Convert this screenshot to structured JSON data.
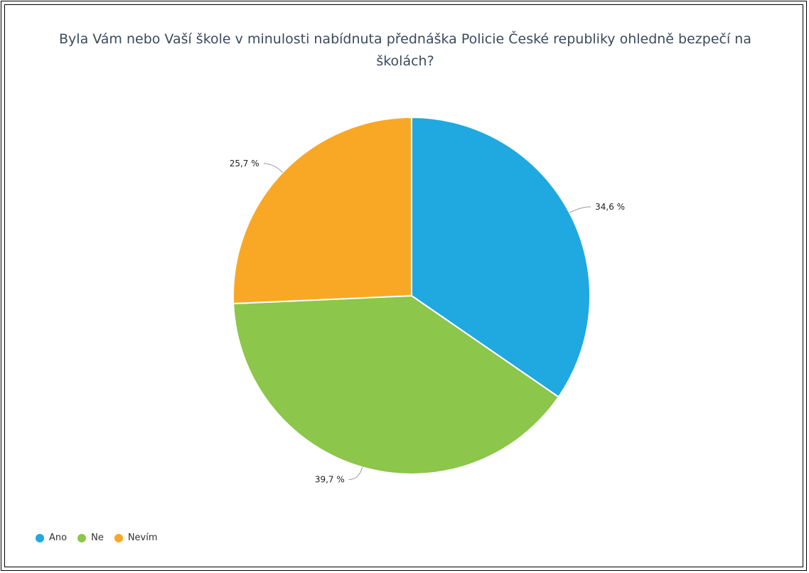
{
  "chart_data": {
    "type": "pie",
    "title": "Byla Vám nebo Vaší škole v minulosti nabídnuta přednáška Policie České republiky ohledně bezpečí na školách?",
    "categories": [
      "Ano",
      "Ne",
      "Nevím"
    ],
    "values": [
      34.6,
      39.7,
      25.7
    ],
    "labels": [
      "34,6 %",
      "39,7 %",
      "25,7 %"
    ],
    "colors": [
      "#20a8e0",
      "#8cc64a",
      "#f9a825"
    ],
    "legend_position": "bottom-left"
  }
}
